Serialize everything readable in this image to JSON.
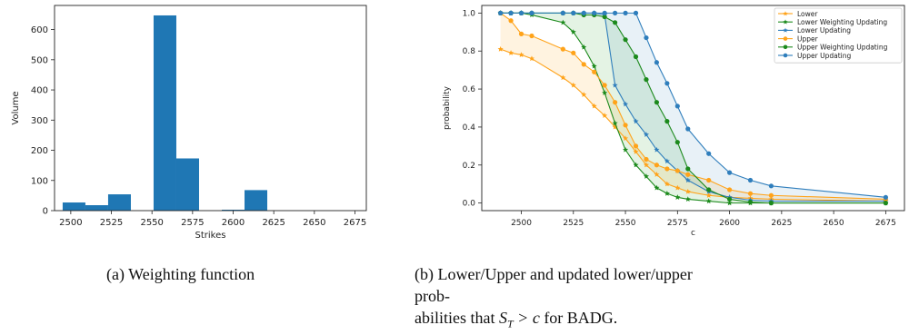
{
  "chart_data": [
    {
      "type": "bar",
      "title": "",
      "xlabel": "Strikes",
      "ylabel": "Volume",
      "xlim": [
        2490,
        2682
      ],
      "ylim": [
        0,
        680
      ],
      "xticks": [
        2500,
        2525,
        2550,
        2575,
        2600,
        2625,
        2650,
        2675
      ],
      "yticks": [
        0,
        100,
        200,
        300,
        400,
        500,
        600
      ],
      "bar_color": "#1f77b4",
      "bins": [
        {
          "x0": 2495,
          "x1": 2509,
          "value": 27
        },
        {
          "x0": 2509,
          "x1": 2523,
          "value": 18
        },
        {
          "x0": 2523,
          "x1": 2537,
          "value": 54
        },
        {
          "x0": 2537,
          "x1": 2551,
          "value": 0
        },
        {
          "x0": 2551,
          "x1": 2565,
          "value": 647
        },
        {
          "x0": 2565,
          "x1": 2579,
          "value": 173
        },
        {
          "x0": 2579,
          "x1": 2593,
          "value": 0
        },
        {
          "x0": 2593,
          "x1": 2607,
          "value": 3
        },
        {
          "x0": 2607,
          "x1": 2621,
          "value": 68
        },
        {
          "x0": 2621,
          "x1": 2635,
          "value": 0
        },
        {
          "x0": 2635,
          "x1": 2649,
          "value": 0
        },
        {
          "x0": 2649,
          "x1": 2663,
          "value": 0
        },
        {
          "x0": 2663,
          "x1": 2677,
          "value": 0
        }
      ],
      "grid": false
    },
    {
      "type": "line",
      "title": "",
      "xlabel": "c",
      "ylabel": "probability",
      "xlim": [
        2481,
        2684
      ],
      "ylim": [
        -0.04,
        1.04
      ],
      "xticks": [
        2500,
        2525,
        2550,
        2575,
        2600,
        2625,
        2650,
        2675
      ],
      "yticks": [
        0.0,
        0.2,
        0.4,
        0.6,
        0.8,
        1.0
      ],
      "ytick_labels": [
        "0.0",
        "0.2",
        "0.4",
        "0.6",
        "0.8",
        "1.0"
      ],
      "legend_position": "top-right",
      "grid": false,
      "shaded_bands": [
        {
          "lower": "Lower",
          "upper": "Upper",
          "color": "#ff9f0e",
          "opacity": 0.13
        },
        {
          "lower": "Lower Weighting Updating",
          "upper": "Upper Weighting Updating",
          "color": "#2ca02c",
          "opacity": 0.13
        },
        {
          "lower": "Lower Updating",
          "upper": "Upper Updating",
          "color": "#1f77b4",
          "opacity": 0.1
        }
      ],
      "series": [
        {
          "name": "Lower",
          "color": "#ffa31a",
          "marker": "star",
          "x": [
            2490,
            2495,
            2500,
            2505,
            2520,
            2525,
            2530,
            2535,
            2540,
            2545,
            2550,
            2555,
            2560,
            2565,
            2570,
            2575,
            2580,
            2590,
            2600,
            2610,
            2620,
            2675
          ],
          "y": [
            0.81,
            0.79,
            0.78,
            0.76,
            0.66,
            0.62,
            0.57,
            0.51,
            0.46,
            0.4,
            0.34,
            0.27,
            0.2,
            0.15,
            0.1,
            0.08,
            0.06,
            0.04,
            0.03,
            0.025,
            0.02,
            0.01
          ]
        },
        {
          "name": "Lower Weighting Updating",
          "color": "#1c8a1c",
          "marker": "star",
          "x": [
            2490,
            2495,
            2500,
            2505,
            2520,
            2525,
            2530,
            2535,
            2540,
            2545,
            2550,
            2555,
            2560,
            2565,
            2570,
            2575,
            2580,
            2590,
            2600,
            2610,
            2620,
            2675
          ],
          "y": [
            1.0,
            1.0,
            1.0,
            0.99,
            0.95,
            0.9,
            0.82,
            0.72,
            0.58,
            0.42,
            0.28,
            0.2,
            0.14,
            0.08,
            0.05,
            0.03,
            0.02,
            0.01,
            0.0,
            0.0,
            0.0,
            0.0
          ]
        },
        {
          "name": "Lower Updating",
          "color": "#2f7ebc",
          "marker": "star",
          "x": [
            2490,
            2495,
            2500,
            2505,
            2520,
            2525,
            2530,
            2535,
            2540,
            2545,
            2550,
            2555,
            2560,
            2565,
            2570,
            2575,
            2580,
            2590,
            2600,
            2610,
            2620,
            2675
          ],
          "y": [
            1.0,
            1.0,
            1.0,
            1.0,
            1.0,
            1.0,
            1.0,
            1.0,
            0.99,
            0.62,
            0.52,
            0.43,
            0.36,
            0.28,
            0.22,
            0.17,
            0.12,
            0.06,
            0.03,
            0.015,
            0.01,
            0.01
          ]
        },
        {
          "name": "Upper",
          "color": "#ffa31a",
          "marker": "circle",
          "x": [
            2490,
            2495,
            2500,
            2505,
            2520,
            2525,
            2530,
            2535,
            2540,
            2545,
            2550,
            2555,
            2560,
            2565,
            2570,
            2575,
            2580,
            2590,
            2600,
            2610,
            2620,
            2675
          ],
          "y": [
            1.0,
            0.96,
            0.89,
            0.88,
            0.81,
            0.79,
            0.73,
            0.69,
            0.62,
            0.53,
            0.41,
            0.3,
            0.23,
            0.2,
            0.18,
            0.17,
            0.15,
            0.12,
            0.07,
            0.05,
            0.04,
            0.02
          ]
        },
        {
          "name": "Upper Weighting Updating",
          "color": "#1c8a1c",
          "marker": "circle",
          "x": [
            2490,
            2495,
            2500,
            2505,
            2520,
            2525,
            2530,
            2535,
            2540,
            2545,
            2550,
            2555,
            2560,
            2565,
            2570,
            2575,
            2580,
            2590,
            2600,
            2610,
            2620,
            2675
          ],
          "y": [
            1.0,
            1.0,
            1.0,
            1.0,
            1.0,
            1.0,
            0.99,
            0.99,
            0.98,
            0.95,
            0.86,
            0.77,
            0.65,
            0.53,
            0.43,
            0.32,
            0.18,
            0.07,
            0.02,
            0.005,
            0.0,
            0.0
          ]
        },
        {
          "name": "Upper Updating",
          "color": "#2f7ebc",
          "marker": "circle",
          "x": [
            2490,
            2495,
            2500,
            2505,
            2520,
            2525,
            2530,
            2535,
            2540,
            2545,
            2550,
            2555,
            2560,
            2565,
            2570,
            2575,
            2580,
            2590,
            2600,
            2610,
            2620,
            2675
          ],
          "y": [
            1.0,
            1.0,
            1.0,
            1.0,
            1.0,
            1.0,
            1.0,
            1.0,
            1.0,
            1.0,
            1.0,
            1.0,
            0.87,
            0.74,
            0.63,
            0.51,
            0.39,
            0.26,
            0.16,
            0.12,
            0.09,
            0.03
          ]
        }
      ]
    }
  ],
  "captions": {
    "a": "(a) Weighting function",
    "b_prefix": "(b) Lower/Upper and updated lower/upper prob-abilities that",
    "b_line1": "(b) Lower/Upper and updated lower/upper prob-",
    "b_line2_prefix": "abilities that ",
    "b_math": "S",
    "b_math_sub": "T",
    "b_math_rest": " > c",
    "b_suffix": " for BADG."
  }
}
